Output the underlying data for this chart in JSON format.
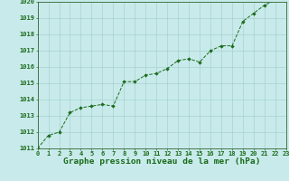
{
  "x": [
    0,
    1,
    2,
    3,
    4,
    5,
    6,
    7,
    8,
    9,
    10,
    11,
    12,
    13,
    14,
    15,
    16,
    17,
    18,
    19,
    20,
    21,
    22,
    23
  ],
  "y": [
    1011.0,
    1011.8,
    1012.0,
    1013.2,
    1013.5,
    1013.6,
    1013.7,
    1013.6,
    1015.1,
    1015.1,
    1015.5,
    1015.6,
    1015.9,
    1016.4,
    1016.5,
    1016.3,
    1017.0,
    1017.3,
    1017.3,
    1018.8,
    1019.3,
    1019.8,
    1020.1,
    1020.1
  ],
  "ylim": [
    1011,
    1020
  ],
  "yticks": [
    1011,
    1012,
    1013,
    1014,
    1015,
    1016,
    1017,
    1018,
    1019,
    1020
  ],
  "xticks": [
    0,
    1,
    2,
    3,
    4,
    5,
    6,
    7,
    8,
    9,
    10,
    11,
    12,
    13,
    14,
    15,
    16,
    17,
    18,
    19,
    20,
    21,
    22,
    23
  ],
  "line_color": "#1a6b1a",
  "marker_color": "#1a6b1a",
  "bg_color": "#c8eaea",
  "grid_color": "#a0cccc",
  "xlabel": "Graphe pression niveau de la mer (hPa)",
  "xlabel_color": "#1a6b1a",
  "tick_color": "#1a6b1a",
  "axis_color": "#336633",
  "tick_fontsize": 5.0,
  "xlabel_fontsize": 6.8,
  "bottom_bar_color": "#2a7a2a"
}
